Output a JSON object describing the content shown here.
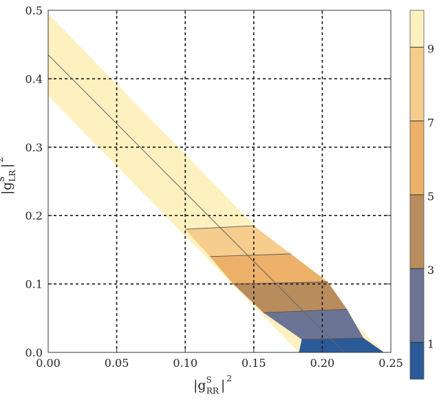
{
  "chart_data": {
    "type": "contour",
    "title": "",
    "xlabel": {
      "base": "|g",
      "sup": "S",
      "sub": "RR",
      "tail": "|",
      "power": "2"
    },
    "ylabel": {
      "base": "|g",
      "sup": "S",
      "sub": "LR",
      "tail": "|",
      "power": "2"
    },
    "xlim": [
      0,
      0.25
    ],
    "ylim": [
      0,
      0.5
    ],
    "x_ticks": [
      "0.00",
      "0.05",
      "0.10",
      "0.15",
      "0.20",
      "0.25"
    ],
    "y_ticks": [
      "0.0",
      "0.1",
      "0.2",
      "0.3",
      "0.4",
      "0.5"
    ],
    "x_tick_values": [
      0,
      0.05,
      0.1,
      0.15,
      0.2,
      0.25
    ],
    "y_tick_values": [
      0,
      0.1,
      0.2,
      0.3,
      0.4,
      0.5
    ],
    "grid": "dashed",
    "band": {
      "polygon": [
        [
          0,
          0.495
        ],
        [
          0.146,
          0.195
        ],
        [
          0.245,
          0.0
        ],
        [
          0.183,
          0.0
        ],
        [
          0.0,
          0.375
        ]
      ],
      "center_line": [
        [
          0,
          0.435
        ],
        [
          0.216,
          0.0
        ]
      ]
    },
    "contour_bands": [
      {
        "range": [
          0,
          1
        ],
        "color": "#2a5a98",
        "polygon": [
          [
            0.183,
            0.0
          ],
          [
            0.185,
            0.019
          ],
          [
            0.23,
            0.021
          ],
          [
            0.245,
            0.0
          ]
        ]
      },
      {
        "range": [
          1,
          3
        ],
        "color": "#6b7494",
        "polygon": [
          [
            0.185,
            0.019
          ],
          [
            0.157,
            0.058
          ],
          [
            0.218,
            0.063
          ],
          [
            0.23,
            0.021
          ]
        ]
      },
      {
        "range": [
          3,
          5
        ],
        "color": "#b98c5e",
        "polygon": [
          [
            0.157,
            0.058
          ],
          [
            0.135,
            0.1
          ],
          [
            0.204,
            0.103
          ],
          [
            0.218,
            0.063
          ]
        ]
      },
      {
        "range": [
          5,
          7
        ],
        "color": "#ecb068",
        "polygon": [
          [
            0.135,
            0.1
          ],
          [
            0.118,
            0.14
          ],
          [
            0.177,
            0.144
          ],
          [
            0.204,
            0.103
          ]
        ]
      },
      {
        "range": [
          7,
          9
        ],
        "color": "#f7cd8d",
        "polygon": [
          [
            0.118,
            0.14
          ],
          [
            0.1,
            0.18
          ],
          [
            0.15,
            0.185
          ],
          [
            0.177,
            0.144
          ]
        ]
      }
    ],
    "colorbar": {
      "labels": [
        "1",
        "3",
        "5",
        "7",
        "9"
      ],
      "segments": [
        {
          "from": 0,
          "to": 1,
          "color": "#2a5a98"
        },
        {
          "from": 1,
          "to": 3,
          "color": "#6b7494"
        },
        {
          "from": 3,
          "to": 5,
          "color": "#b98c5e"
        },
        {
          "from": 5,
          "to": 7,
          "color": "#ecb068"
        },
        {
          "from": 7,
          "to": 9,
          "color": "#f7cd8d"
        },
        {
          "from": 9,
          "to": 10,
          "color": "#fdf1c0"
        }
      ],
      "range": [
        0,
        10
      ]
    },
    "colors": {
      "band": "#fdf1c0",
      "line": "#666666",
      "grid": "#111111",
      "frame": "#333333"
    }
  }
}
